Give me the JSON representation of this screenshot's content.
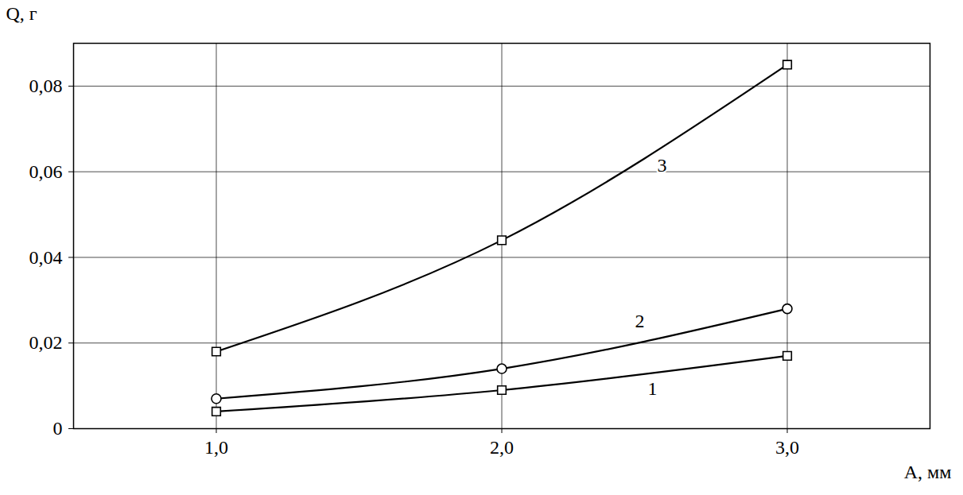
{
  "chart_data": {
    "type": "line",
    "x_label": "A, мм",
    "y_label": "Q, г",
    "x": [
      1,
      2,
      3
    ],
    "xlim": [
      0.5,
      3.5
    ],
    "xticks": [
      {
        "value": 1,
        "label": "1,0"
      },
      {
        "value": 2,
        "label": "2,0"
      },
      {
        "value": 3,
        "label": "3,0"
      }
    ],
    "ylim": [
      0,
      0.09
    ],
    "yticks": [
      0,
      {
        "value": 0.02,
        "label": "0,02"
      },
      {
        "value": 0.04,
        "label": "0,04"
      },
      {
        "value": 0.06,
        "label": "0,06"
      },
      {
        "value": 0.08,
        "label": "0,08"
      }
    ],
    "grid": true,
    "series": [
      {
        "name": "1",
        "color": "#000000",
        "marker": "square",
        "line_style": "solid",
        "values": [
          0.004,
          0.009,
          0.017
        ]
      },
      {
        "name": "2",
        "color": "#000000",
        "marker": "circle",
        "line_style": "solid",
        "values": [
          0.007,
          0.014,
          0.028
        ]
      },
      {
        "name": "3",
        "color": "#000000",
        "marker": "square",
        "line_style": "solid",
        "values": [
          0.018,
          0.044,
          0.085
        ]
      }
    ]
  }
}
